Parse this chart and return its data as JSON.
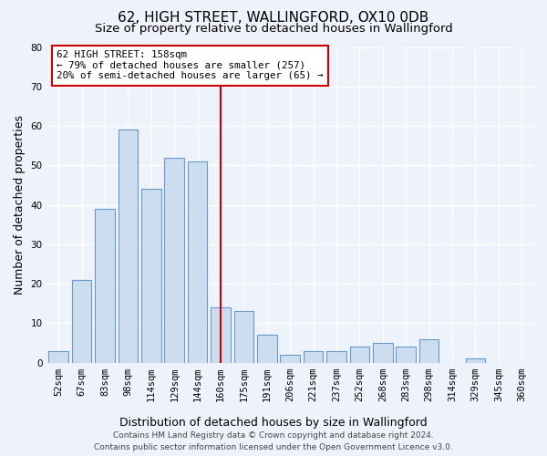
{
  "title": "62, HIGH STREET, WALLINGFORD, OX10 0DB",
  "subtitle": "Size of property relative to detached houses in Wallingford",
  "xlabel": "Distribution of detached houses by size in Wallingford",
  "ylabel": "Number of detached properties",
  "categories": [
    "52sqm",
    "67sqm",
    "83sqm",
    "98sqm",
    "114sqm",
    "129sqm",
    "144sqm",
    "160sqm",
    "175sqm",
    "191sqm",
    "206sqm",
    "221sqm",
    "237sqm",
    "252sqm",
    "268sqm",
    "283sqm",
    "298sqm",
    "314sqm",
    "329sqm",
    "345sqm",
    "360sqm"
  ],
  "values": [
    3,
    21,
    39,
    59,
    44,
    52,
    51,
    14,
    13,
    7,
    2,
    3,
    3,
    4,
    5,
    4,
    6,
    0,
    1,
    0,
    0
  ],
  "bar_face_color": "#ccddf0",
  "bar_edge_color": "#6699cc",
  "vline_index": 7,
  "vline_color": "#cc0000",
  "annotation_title": "62 HIGH STREET: 158sqm",
  "annotation_line1": "← 79% of detached houses are smaller (257)",
  "annotation_line2": "20% of semi-detached houses are larger (65) →",
  "annotation_box_color": "#ffffff",
  "annotation_box_edge": "#cc0000",
  "ylim": [
    0,
    80
  ],
  "yticks": [
    0,
    10,
    20,
    30,
    40,
    50,
    60,
    70,
    80
  ],
  "footer_line1": "Contains HM Land Registry data © Crown copyright and database right 2024.",
  "footer_line2": "Contains public sector information licensed under the Open Government Licence v3.0.",
  "bg_color": "#eef2fa",
  "grid_color": "#ffffff",
  "title_fontsize": 11,
  "subtitle_fontsize": 9.5,
  "axis_label_fontsize": 9,
  "tick_fontsize": 7.5,
  "footer_fontsize": 6.5
}
